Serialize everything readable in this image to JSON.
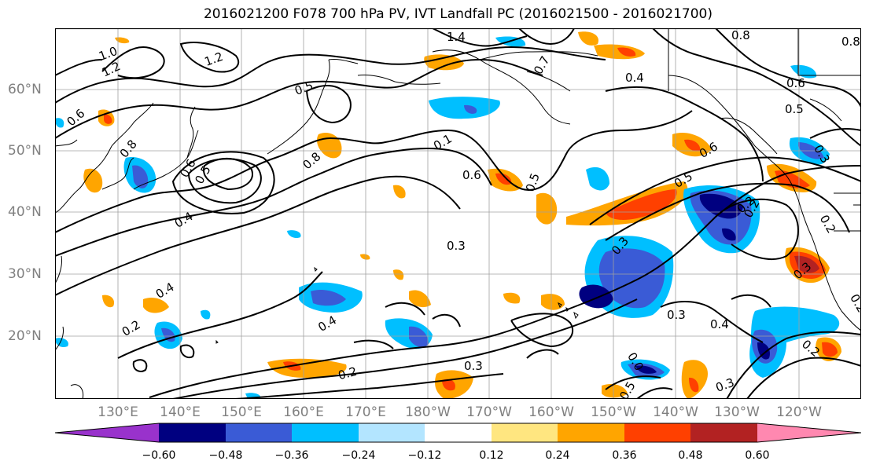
{
  "title": "2016021200 F078 700 hPa PV, IVT Landfall PC (2016021500 - 2016021700)",
  "lat_labels": [
    "60°N",
    "50°N",
    "40°N",
    "30°N",
    "20°N"
  ],
  "lon_labels": [
    "130°E",
    "140°E",
    "150°E",
    "160°E",
    "170°E",
    "180°W",
    "170°W",
    "160°W",
    "150°W",
    "140°W",
    "130°W",
    "120°W"
  ],
  "contour_labels": [
    "1.4",
    "1.0",
    "1.2",
    "1.2",
    "0.8",
    "0.8",
    "0.5",
    "0.6",
    "0.4",
    "0.7",
    "0.1",
    "0.5",
    "0.8",
    "0.6",
    "0.8",
    "0.6",
    "0.5",
    "0.4",
    "0.3",
    "0.4",
    "0.2",
    "0.4",
    "0.3",
    "0.3",
    "0.3",
    "0.4",
    "0.2",
    "0.2",
    "0.2",
    "0.3",
    "0.3",
    "0.5",
    "0.6",
    "0.5",
    "0.5",
    "0.6",
    "0.2",
    "0.3",
    "0.2",
    "0.0",
    "0.2"
  ],
  "colorbar": {
    "ticks": [
      "−0.60",
      "−0.48",
      "−0.36",
      "−0.24",
      "−0.12",
      "0.12",
      "0.24",
      "0.36",
      "0.48",
      "0.60"
    ],
    "colors": [
      "#9932cc",
      "#000080",
      "#3a5bd6",
      "#00bfff",
      "#b3e5ff",
      "#ffffff",
      "#ffe680",
      "#ffa500",
      "#ff4000",
      "#b22222",
      "#ff88b0"
    ]
  },
  "colors": {
    "land_line": "#000000",
    "grid": "#a0a0a0"
  }
}
